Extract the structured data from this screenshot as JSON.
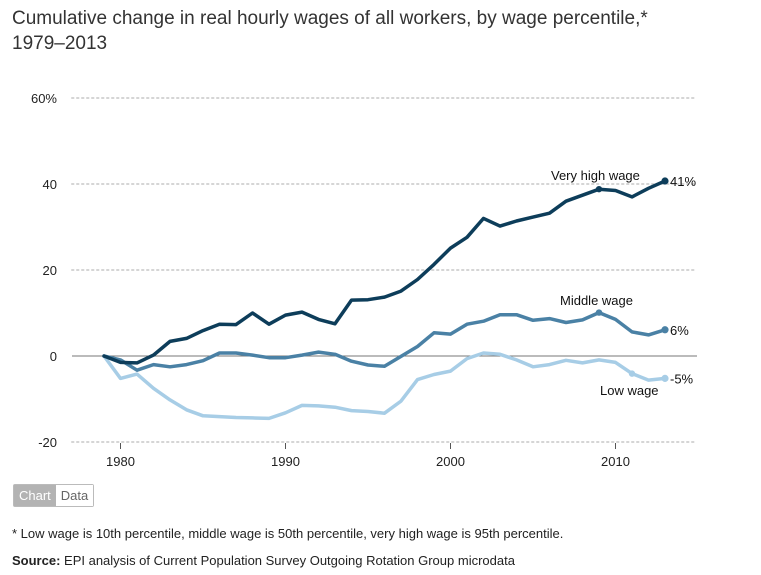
{
  "title": {
    "line1": "Cumulative change in real hourly wages of all workers, by wage percentile,*",
    "line2": "1979–2013"
  },
  "tabs": {
    "chart": "Chart",
    "data": "Data"
  },
  "footnote": "* Low wage is 10th percentile, middle wage is 50th percentile, very high wage is 95th percentile.",
  "source": {
    "label": "Source:",
    "text": "EPI analysis of Current Population Survey Outgoing Rotation Group microdata"
  },
  "chart_data": {
    "type": "line",
    "ylim": [
      -20,
      60
    ],
    "xlim": [
      1978,
      2014
    ],
    "y_ticks": [
      -20,
      0,
      20,
      40,
      60
    ],
    "y_tick_labels": [
      "-20",
      "0",
      "20",
      "40",
      "60%"
    ],
    "x_ticks": [
      1980,
      1990,
      2000,
      2010
    ],
    "x_tick_labels": [
      "1980",
      "1990",
      "2000",
      "2010"
    ],
    "grid": "dotted horizontal",
    "x": [
      1979,
      1980,
      1981,
      1982,
      1983,
      1984,
      1985,
      1986,
      1987,
      1988,
      1989,
      1990,
      1991,
      1992,
      1993,
      1994,
      1995,
      1996,
      1997,
      1998,
      1999,
      2000,
      2001,
      2002,
      2003,
      2004,
      2005,
      2006,
      2007,
      2008,
      2009,
      2010,
      2011,
      2012,
      2013
    ],
    "series": [
      {
        "name": "Very high wage",
        "color": "#0d3d5a",
        "end_label": "41%",
        "values": [
          0,
          -1.5,
          -1.6,
          0.2,
          3.4,
          4.1,
          5.9,
          7.4,
          7.3,
          10,
          7.4,
          9.5,
          10.2,
          8.5,
          7.5,
          13,
          13.1,
          13.7,
          15.1,
          17.8,
          21.3,
          25.1,
          27.6,
          32,
          30.2,
          31.4,
          32.3,
          33.2,
          36,
          37.4,
          38.8,
          38.5,
          37,
          39,
          40.7
        ]
      },
      {
        "name": "Middle wage",
        "color": "#4a81a5",
        "end_label": "6%",
        "values": [
          0,
          -0.9,
          -3.3,
          -2,
          -2.5,
          -2,
          -1.1,
          0.7,
          0.7,
          0.2,
          -0.4,
          -0.4,
          0.2,
          0.9,
          0.4,
          -1.2,
          -2.1,
          -2.4,
          -0.1,
          2.2,
          5.4,
          5.1,
          7.4,
          8.1,
          9.6,
          9.6,
          8.3,
          8.7,
          7.8,
          8.4,
          10.1,
          8.5,
          5.6,
          4.9,
          6.1
        ]
      },
      {
        "name": "Low wage",
        "color": "#a7cde6",
        "end_label": "-5%",
        "values": [
          0,
          -5.2,
          -4.2,
          -7.5,
          -10.2,
          -12.5,
          -13.9,
          -14.1,
          -14.3,
          -14.4,
          -14.5,
          -13.2,
          -11.5,
          -11.6,
          -11.9,
          -12.7,
          -12.9,
          -13.3,
          -10.5,
          -5.5,
          -4.3,
          -3.5,
          -0.6,
          0.7,
          0.4,
          -0.9,
          -2.5,
          -2,
          -1,
          -1.6,
          -0.9,
          -1.5,
          -4.1,
          -5.6,
          -5.2
        ]
      }
    ]
  }
}
